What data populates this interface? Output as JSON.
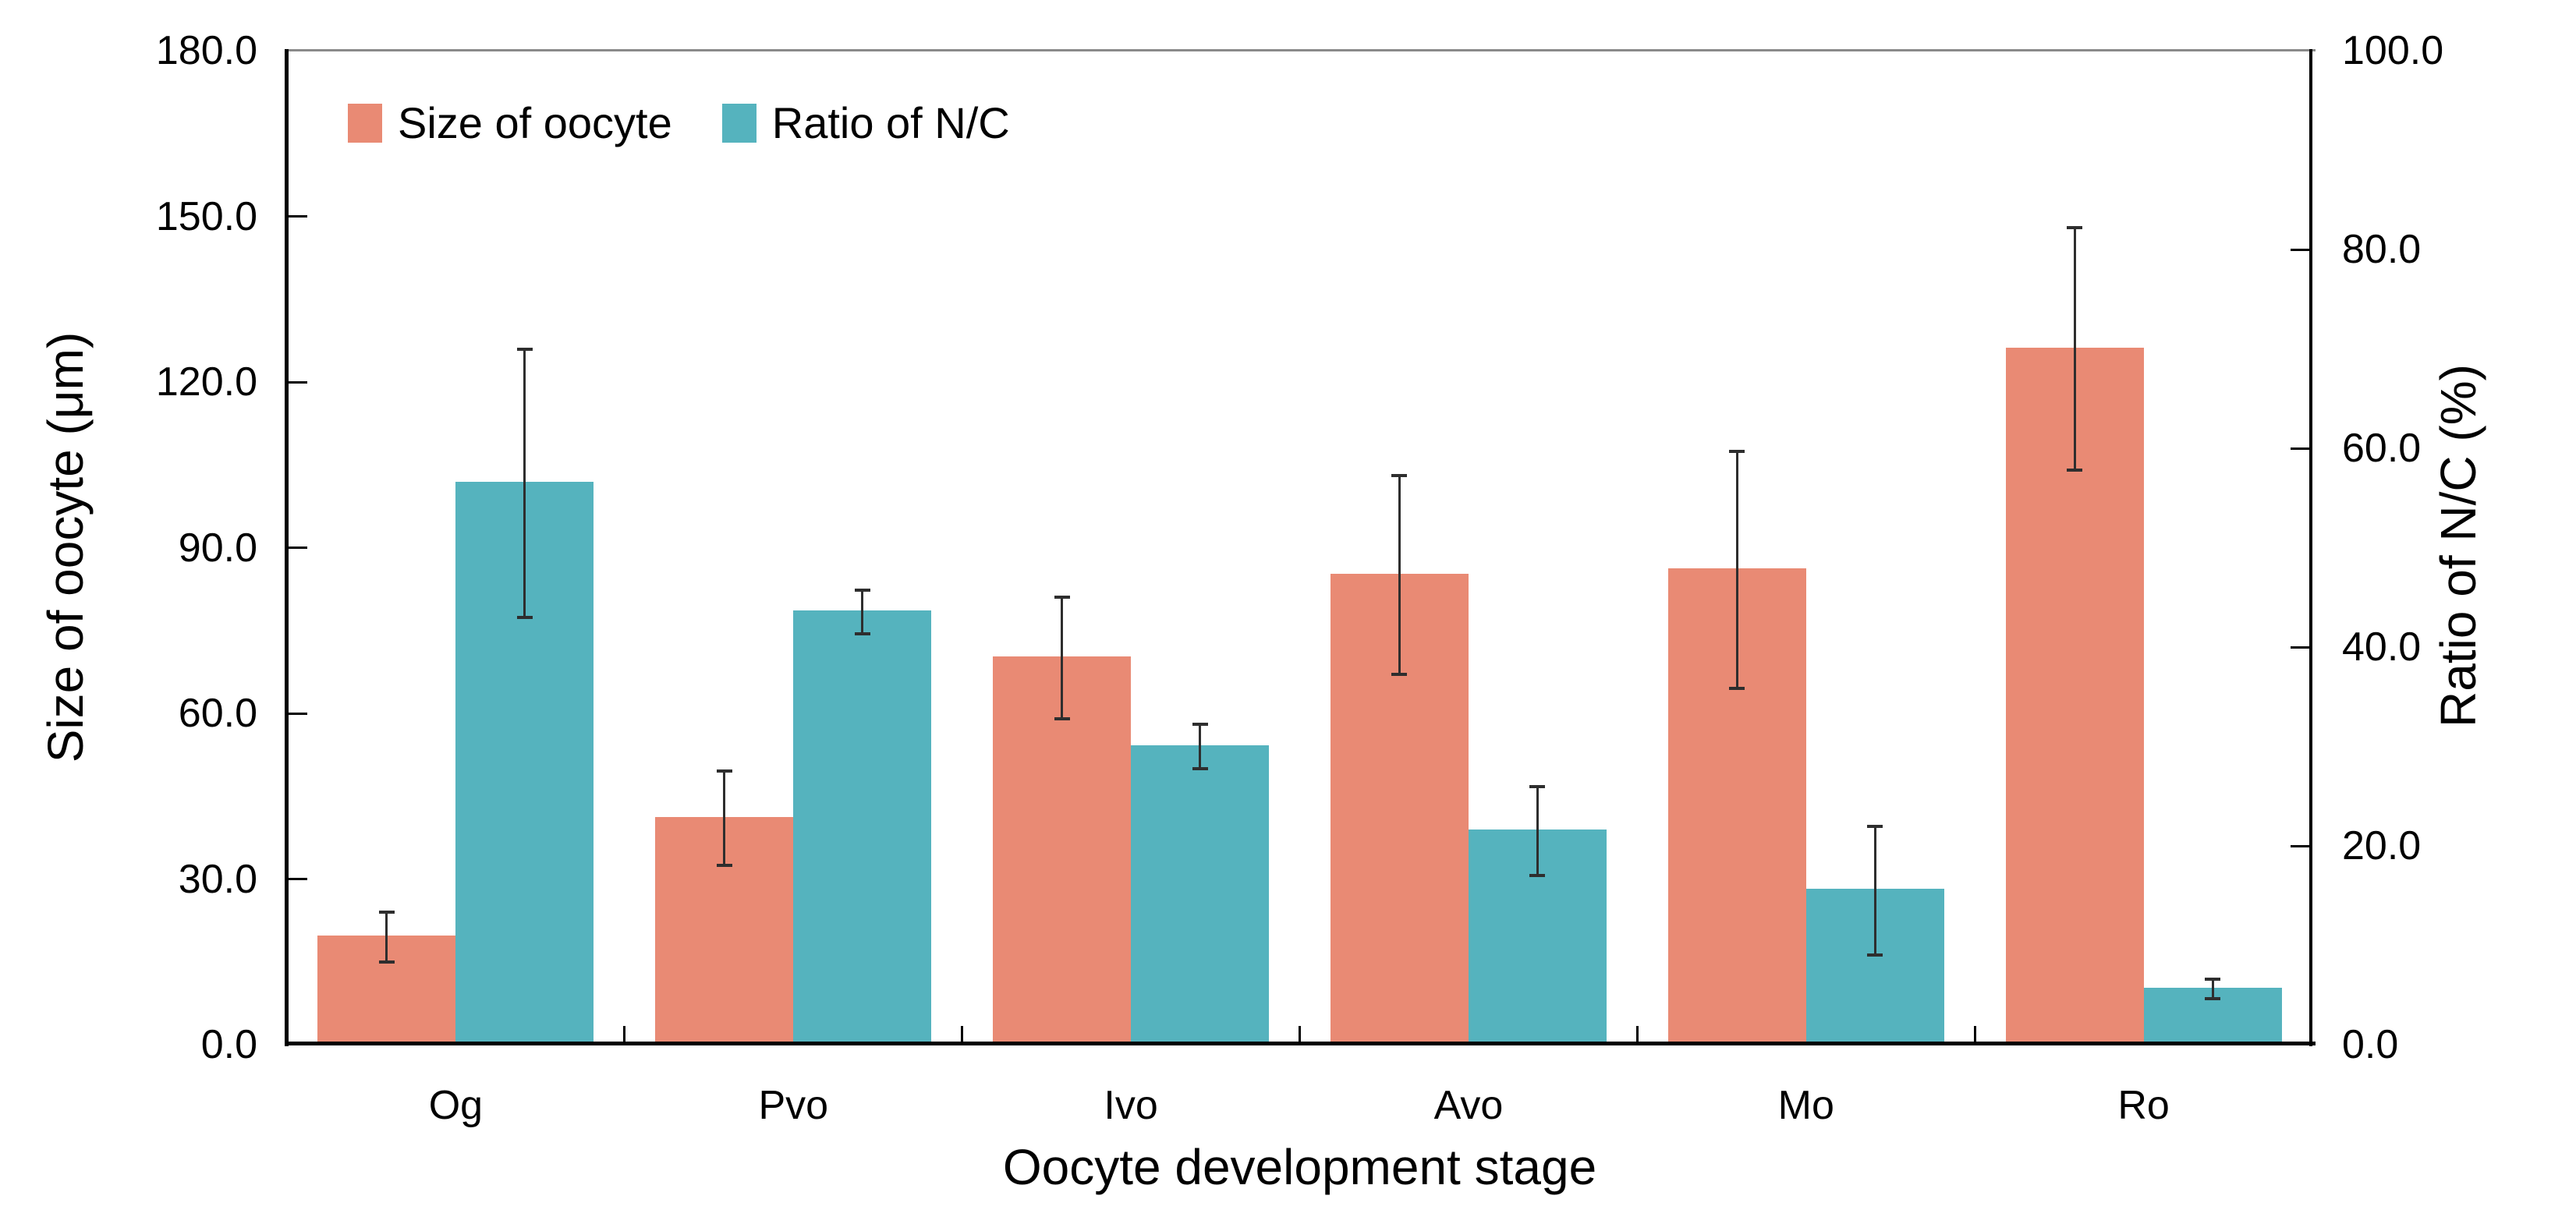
{
  "chart_data": {
    "type": "bar",
    "title": "",
    "categories": [
      "Og",
      "Pvo",
      "Ivo",
      "Avo",
      "Mo",
      "Ro"
    ],
    "series": [
      {
        "name": "Size of oocyte",
        "axis": "left",
        "color": "#E98A74",
        "values": [
          19.5,
          41,
          70,
          85,
          86,
          126
        ],
        "errors": [
          4.5,
          8.5,
          11,
          18,
          21.5,
          22
        ]
      },
      {
        "name": "Ratio of N/C",
        "axis": "right",
        "color": "#55B3BE",
        "values": [
          56.5,
          43.5,
          30,
          21.5,
          15.5,
          5.6
        ],
        "errors": [
          13.5,
          2.2,
          2.2,
          4.5,
          6.5,
          1
        ]
      }
    ],
    "xlabel": "Oocyte development stage",
    "ylabel_left": "Size of oocyte (μm)",
    "ylabel_right": "Ratio of N/C (%)",
    "ylim_left": [
      0,
      180
    ],
    "ylim_right": [
      0,
      100
    ],
    "ytick_step_left": 30,
    "ytick_step_right": 20,
    "yticks_left": [
      "0.0",
      "30.0",
      "60.0",
      "90.0",
      "120.0",
      "150.0",
      "180.0"
    ],
    "yticks_right": [
      "0.0",
      "20.0",
      "40.0",
      "60.0",
      "80.0",
      "100.0"
    ],
    "grid": false,
    "legend_position": "top-left-inside",
    "error_bar_color": "#2e2e2e",
    "frame_top_color": "#8a8a8a",
    "axis_color": "#000000"
  }
}
